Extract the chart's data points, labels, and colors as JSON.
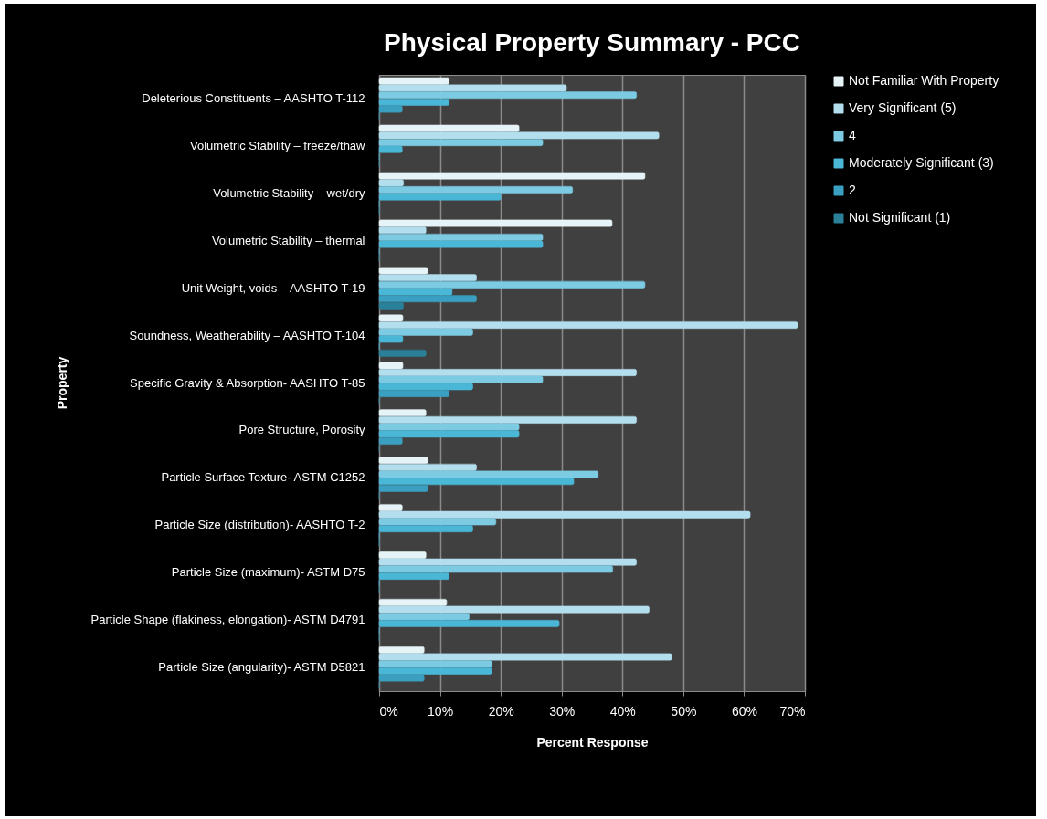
{
  "chart_data": {
    "type": "bar",
    "orientation": "horizontal",
    "title": "Physical Property Summary - PCC",
    "xlabel": "Percent Response",
    "ylabel": "Property",
    "categories": [
      "Deleterious Constituents – AASHTO T-112",
      "Volumetric Stability – freeze/thaw",
      "Volumetric Stability – wet/dry",
      "Volumetric Stability – thermal",
      "Unit Weight, voids – AASHTO T-19",
      "Soundness, Weatherability – AASHTO T-104",
      "Specific Gravity & Absorption- AASHTO T-85",
      "Pore Structure, Porosity",
      "Particle Surface Texture- ASTM C1252",
      "Particle Size (distribution)- AASHTO T-2",
      "Particle Size (maximum)- ASTM D75",
      "Particle Shape (flakiness, elongation)- ASTM D4791",
      "Particle Size (angularity)- ASTM D5821"
    ],
    "series": [
      {
        "name": "Not Familiar  With Property",
        "color": "#e6f3f7",
        "values": [
          11.5,
          23,
          43.7,
          38.3,
          8,
          3.9,
          3.9,
          7.7,
          8,
          3.8,
          7.7,
          11.1,
          7.4
        ]
      },
      {
        "name": "Very Significant (5)",
        "color": "#b3deed",
        "values": [
          30.8,
          46,
          4,
          7.7,
          16,
          68.8,
          42.3,
          42.3,
          16,
          61,
          42.3,
          44.4,
          48.1
        ]
      },
      {
        "name": "4",
        "color": "#7ccbe3",
        "values": [
          42.3,
          26.9,
          31.8,
          26.9,
          43.7,
          15.4,
          26.9,
          23,
          36,
          19.2,
          38.4,
          14.8,
          18.5
        ]
      },
      {
        "name": "Moderately Significant (3)",
        "color": "#4bb7d6",
        "values": [
          11.5,
          3.8,
          20,
          26.9,
          12,
          3.9,
          15.4,
          23,
          32,
          15.4,
          11.5,
          29.6,
          18.5
        ]
      },
      {
        "name": "2",
        "color": "#3a9fc0",
        "values": [
          3.8,
          0,
          0,
          0,
          16,
          0,
          11.5,
          3.8,
          8,
          0,
          0,
          0,
          7.4
        ]
      },
      {
        "name": "Not Significant (1)",
        "color": "#2b8099",
        "values": [
          0,
          0,
          0,
          0,
          4,
          7.7,
          0,
          0,
          0,
          0,
          0,
          0,
          0
        ]
      }
    ],
    "xlim": [
      0,
      70
    ],
    "xticks": [
      {
        "value": 0,
        "label": "0%"
      },
      {
        "value": 10,
        "label": "10%"
      },
      {
        "value": 20,
        "label": "20%"
      },
      {
        "value": 30,
        "label": "30%"
      },
      {
        "value": 40,
        "label": "40%"
      },
      {
        "value": 50,
        "label": "50%"
      },
      {
        "value": 60,
        "label": "60%"
      },
      {
        "value": 70,
        "label": "70%"
      }
    ],
    "grid": "x",
    "legend": "right"
  }
}
